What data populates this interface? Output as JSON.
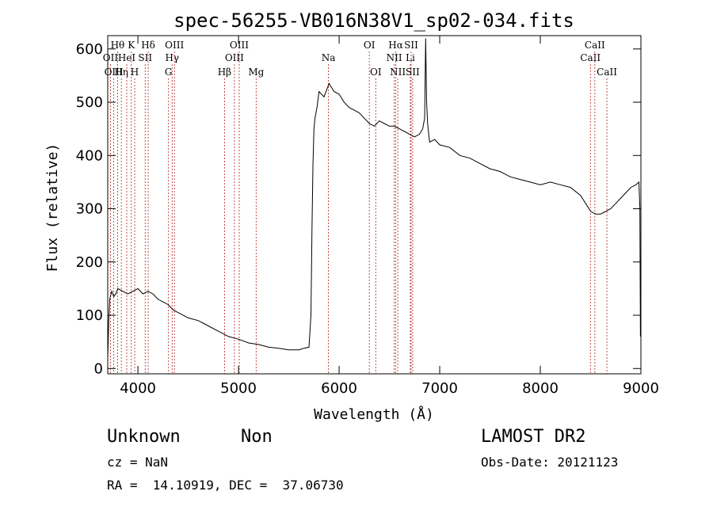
{
  "chart_data": {
    "type": "line",
    "title": "spec-56255-VB016N38V1_sp02-034.fits",
    "xlabel": "Wavelength (Å)",
    "ylabel": "Flux (relative)",
    "xlim": [
      3700,
      9000
    ],
    "ylim": [
      -10,
      625
    ],
    "x_ticks": [
      4000,
      5000,
      6000,
      7000,
      8000,
      9000
    ],
    "y_ticks": [
      0,
      100,
      200,
      300,
      400,
      500,
      600
    ],
    "grid": false,
    "series": [
      {
        "x": [
          3700,
          3710,
          3720,
          3740,
          3760,
          3780,
          3800,
          3850,
          3900,
          3950,
          4000,
          4050,
          4100,
          4150,
          4200,
          4250,
          4300,
          4350,
          4400,
          4500,
          4600,
          4700,
          4800,
          4900,
          5000,
          5100,
          5200,
          5300,
          5400,
          5500,
          5600,
          5650,
          5700,
          5720,
          5730,
          5740,
          5750,
          5760,
          5780,
          5800,
          5850,
          5900,
          5950,
          6000,
          6050,
          6100,
          6150,
          6200,
          6250,
          6300,
          6350,
          6400,
          6450,
          6500,
          6550,
          6600,
          6650,
          6700,
          6750,
          6800,
          6830,
          6850,
          6860,
          6870,
          6880,
          6890,
          6900,
          6950,
          7000,
          7100,
          7200,
          7300,
          7400,
          7500,
          7600,
          7700,
          7800,
          7900,
          8000,
          8100,
          8200,
          8300,
          8400,
          8450,
          8500,
          8550,
          8600,
          8650,
          8700,
          8750,
          8800,
          8850,
          8900,
          8950,
          8980,
          8990,
          8995
        ],
        "y": [
          20,
          90,
          130,
          145,
          135,
          140,
          150,
          145,
          140,
          145,
          150,
          140,
          145,
          140,
          130,
          125,
          120,
          110,
          105,
          95,
          90,
          80,
          70,
          60,
          55,
          48,
          45,
          40,
          38,
          35,
          35,
          38,
          40,
          100,
          260,
          380,
          450,
          470,
          490,
          520,
          510,
          535,
          520,
          515,
          500,
          490,
          485,
          480,
          470,
          460,
          455,
          465,
          460,
          455,
          455,
          450,
          445,
          440,
          435,
          440,
          450,
          470,
          620,
          500,
          460,
          440,
          425,
          430,
          420,
          415,
          400,
          395,
          385,
          375,
          370,
          360,
          355,
          350,
          345,
          350,
          345,
          340,
          325,
          310,
          295,
          290,
          290,
          295,
          300,
          310,
          320,
          330,
          340,
          345,
          350,
          300,
          60
        ]
      }
    ],
    "lines": [
      {
        "label": "Hθ",
        "x": 3798,
        "row": 1
      },
      {
        "label": "OII",
        "x": 3727,
        "row": 2
      },
      {
        "label": "OIII",
        "x": 3760,
        "row": 3
      },
      {
        "label": "Hη",
        "x": 3835,
        "row": 3
      },
      {
        "label": "HeI",
        "x": 3889,
        "row": 2
      },
      {
        "label": "K",
        "x": 3934,
        "row": 1
      },
      {
        "label": "H",
        "x": 3968,
        "row": 3
      },
      {
        "label": "SII",
        "x": 4072,
        "row": 2
      },
      {
        "label": "Hδ",
        "x": 4102,
        "row": 1
      },
      {
        "label": "G",
        "x": 4304,
        "row": 3
      },
      {
        "label": "Hγ",
        "x": 4340,
        "row": 2
      },
      {
        "label": "OIII",
        "x": 4363,
        "row": 1
      },
      {
        "label": "Hβ",
        "x": 4861,
        "row": 3
      },
      {
        "label": "OIII",
        "x": 4959,
        "row": 2
      },
      {
        "label": "OIII",
        "x": 5007,
        "row": 1
      },
      {
        "label": "Mg",
        "x": 5175,
        "row": 3
      },
      {
        "label": "Na",
        "x": 5894,
        "row": 2
      },
      {
        "label": "OI",
        "x": 6300,
        "row": 1
      },
      {
        "label": "OI",
        "x": 6364,
        "row": 3
      },
      {
        "label": "NII",
        "x": 6548,
        "row": 2
      },
      {
        "label": "Hα",
        "x": 6563,
        "row": 1
      },
      {
        "label": "NII",
        "x": 6583,
        "row": 3
      },
      {
        "label": "Li",
        "x": 6708,
        "row": 2
      },
      {
        "label": "SII",
        "x": 6716,
        "row": 1
      },
      {
        "label": "SII",
        "x": 6731,
        "row": 3
      },
      {
        "label": "CaII",
        "x": 8498,
        "row": 2
      },
      {
        "label": "CaII",
        "x": 8542,
        "row": 1
      },
      {
        "label": "CaII",
        "x": 8662,
        "row": 3
      }
    ]
  },
  "info": {
    "class_label": "Unknown",
    "subclass_label": "Non",
    "survey": "LAMOST DR2",
    "cz": "cz = NaN",
    "obs_date": "Obs-Date: 20121123",
    "coords": "RA =  14.10919, DEC =  37.06730"
  }
}
